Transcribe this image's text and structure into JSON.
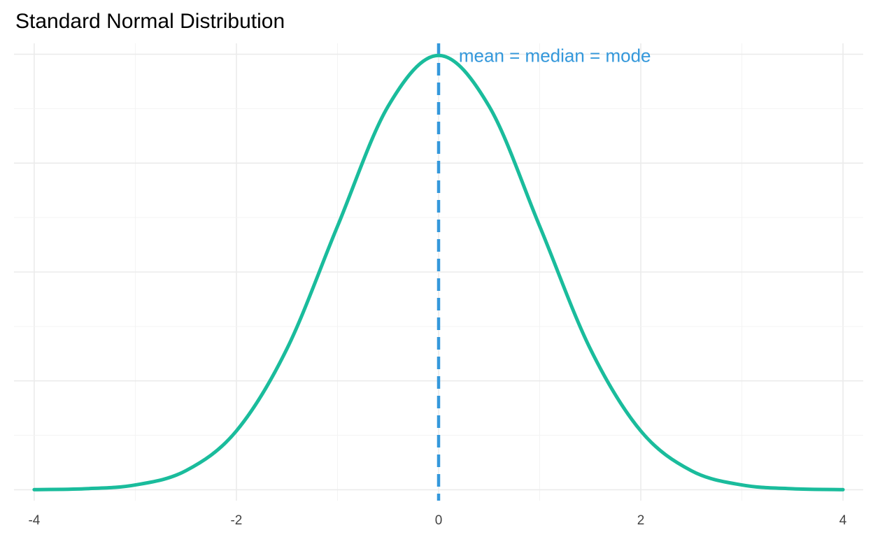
{
  "chart_data": {
    "type": "line",
    "title": "Standard Normal Distribution",
    "xlabel": "",
    "ylabel": "",
    "x_ticks": [
      -4,
      -2,
      0,
      2,
      4
    ],
    "xlim": [
      -4.2,
      4.2
    ],
    "ylim": [
      -0.01,
      0.41
    ],
    "grid": true,
    "series": [
      {
        "color": "#1abc9c",
        "x": [
          -4,
          -3.5,
          -3,
          -2.5,
          -2,
          -1.5,
          -1,
          -0.5,
          0,
          0.5,
          1,
          1.5,
          2,
          2.5,
          3,
          3.5,
          4
        ],
        "y": [
          0.0001,
          0.0009,
          0.0044,
          0.0175,
          0.054,
          0.1295,
          0.242,
          0.3521,
          0.3989,
          0.3521,
          0.242,
          0.1295,
          0.054,
          0.0175,
          0.0044,
          0.0009,
          0.0001
        ]
      }
    ],
    "vline": {
      "x": 0,
      "color": "#3498db",
      "style": "dashed"
    },
    "annotations": [
      {
        "text": "mean = median = mode",
        "x": 0.2,
        "y": 0.3989,
        "color": "#3498db"
      }
    ]
  }
}
